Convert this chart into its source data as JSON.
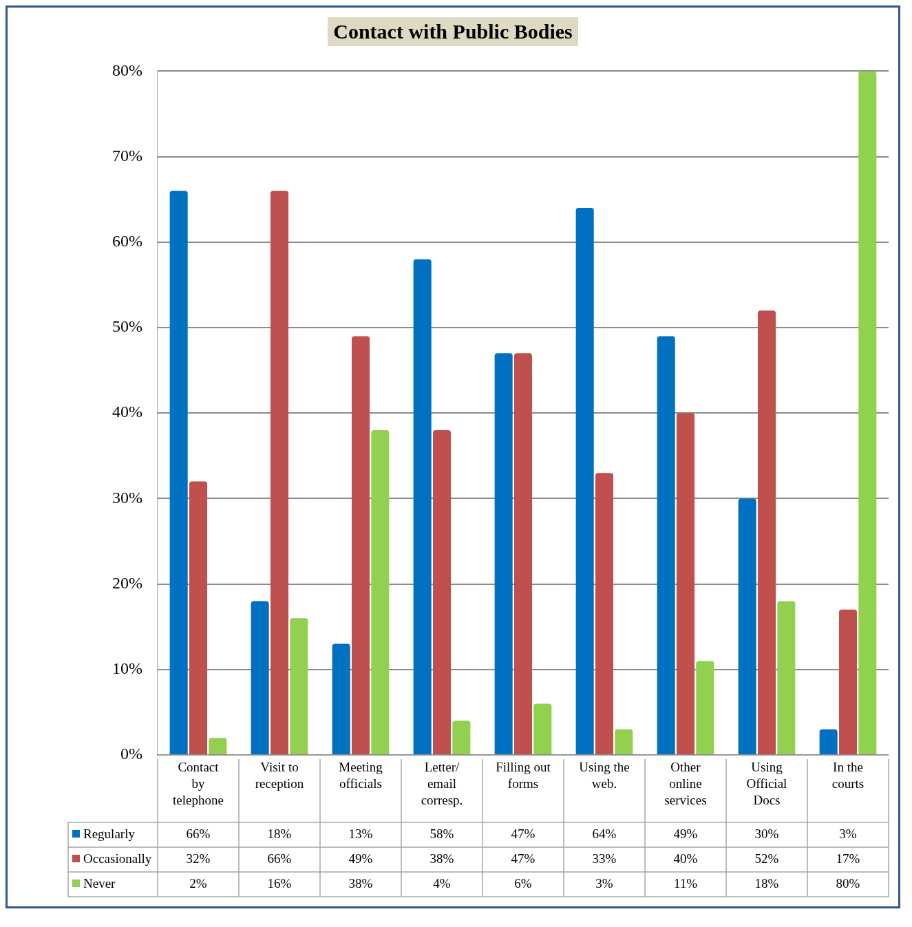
{
  "chart_data": {
    "type": "bar",
    "title": "Contact with Public Bodies",
    "categories": [
      "Contact by telephone",
      "Visit to reception",
      "Meeting officials",
      "Letter/ email corresp.",
      "Filling out forms",
      "Using the web.",
      "Other online services",
      "Using Official Docs",
      "In the courts"
    ],
    "series": [
      {
        "name": "Regularly",
        "color": "#0070c0",
        "values": [
          66,
          18,
          13,
          58,
          47,
          64,
          49,
          30,
          3
        ],
        "value_labels": [
          "66%",
          "18%",
          "13%",
          "58%",
          "47%",
          "64%",
          "49%",
          "30%",
          "3%"
        ]
      },
      {
        "name": "Occasionally",
        "color": "#c0504d",
        "values": [
          32,
          66,
          49,
          38,
          47,
          33,
          40,
          52,
          17
        ],
        "value_labels": [
          "32%",
          "66%",
          "49%",
          "38%",
          "47%",
          "33%",
          "40%",
          "52%",
          "17%"
        ]
      },
      {
        "name": "Never",
        "color": "#92d050",
        "values": [
          2,
          16,
          38,
          4,
          6,
          3,
          11,
          18,
          80
        ],
        "value_labels": [
          "2%",
          "16%",
          "38%",
          "4%",
          "6%",
          "3%",
          "11%",
          "18%",
          "80%"
        ]
      }
    ],
    "ylim": [
      0,
      80
    ],
    "yticks": [
      {
        "value": 0,
        "label": "0%"
      },
      {
        "value": 10,
        "label": "10%"
      },
      {
        "value": 20,
        "label": "20%"
      },
      {
        "value": 30,
        "label": "30%"
      },
      {
        "value": 40,
        "label": "40%"
      },
      {
        "value": 50,
        "label": "50%"
      },
      {
        "value": 60,
        "label": "60%"
      },
      {
        "value": 70,
        "label": "70%"
      },
      {
        "value": 80,
        "label": "80%"
      }
    ],
    "grid": "y",
    "legend": "bottom"
  }
}
